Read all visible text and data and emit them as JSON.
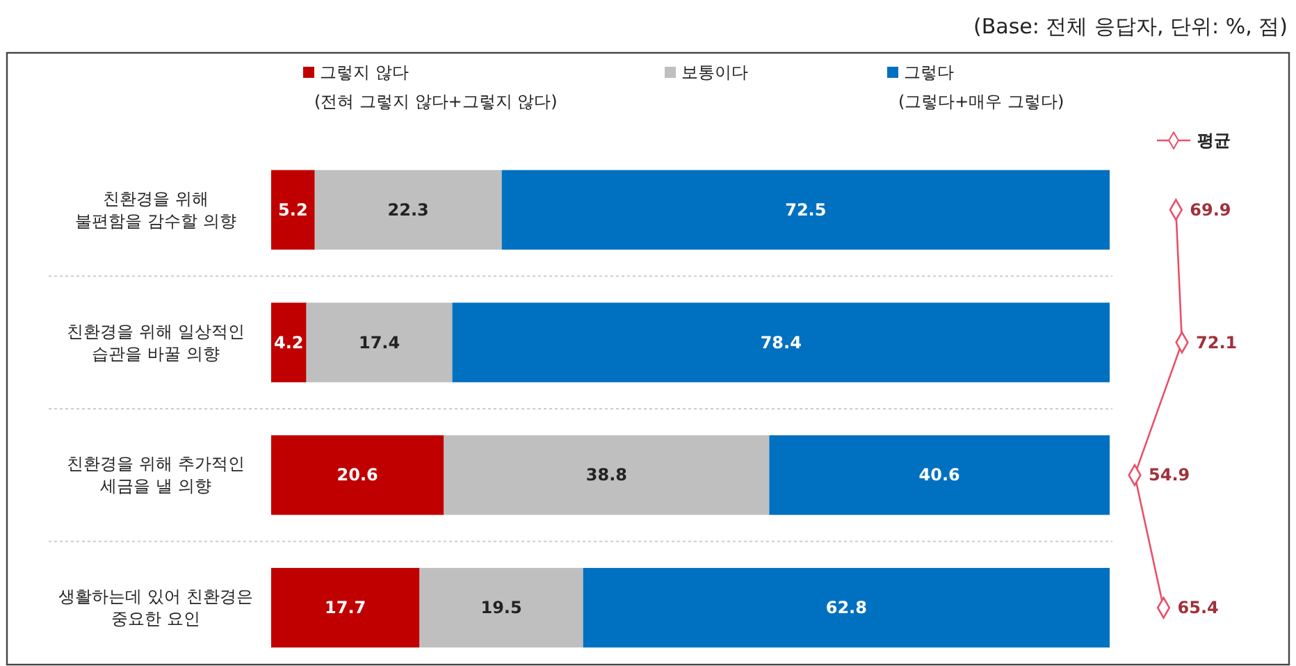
{
  "chart_data": [
    {
      "type": "bar",
      "orientation": "horizontal",
      "stacked": true,
      "annotations": [
        "(Base: 전체 응답자, 단위: %, 점)"
      ],
      "categories": [
        "친환경을 위해\n불편함을 감수할 의향",
        "친환경을 위해 일상적인\n습관을 바꿀 의향",
        "친환경을 위해 추가적인\n세금을 낼 의향",
        "생활하는데 있어 친환경은\n중요한 요인"
      ],
      "xlim": [
        0,
        100
      ],
      "legend": "top",
      "data_labels": true,
      "series": [
        {
          "name": "그렇지 않다\n(전혀 그렇지 않다+그렇지 않다)",
          "color": "#c00000",
          "values": [
            5.2,
            4.2,
            20.6,
            17.7
          ]
        },
        {
          "name": "보통이다",
          "color": "#bfbfbf",
          "values": [
            22.3,
            17.4,
            38.8,
            19.5
          ]
        },
        {
          "name": "그렇다\n(그렇다+매우 그렇다)",
          "color": "#0070c0",
          "values": [
            72.5,
            78.4,
            40.6,
            62.8
          ]
        }
      ]
    },
    {
      "type": "line",
      "orientation": "horizontal",
      "categories": [
        null,
        null,
        null,
        null
      ],
      "legend": "top right",
      "data_labels": true,
      "marker": "diamond",
      "series": [
        {
          "name": "평균",
          "color": "#e8506a",
          "values": [
            69.9,
            72.1,
            54.9,
            65.4
          ]
        }
      ]
    }
  ]
}
